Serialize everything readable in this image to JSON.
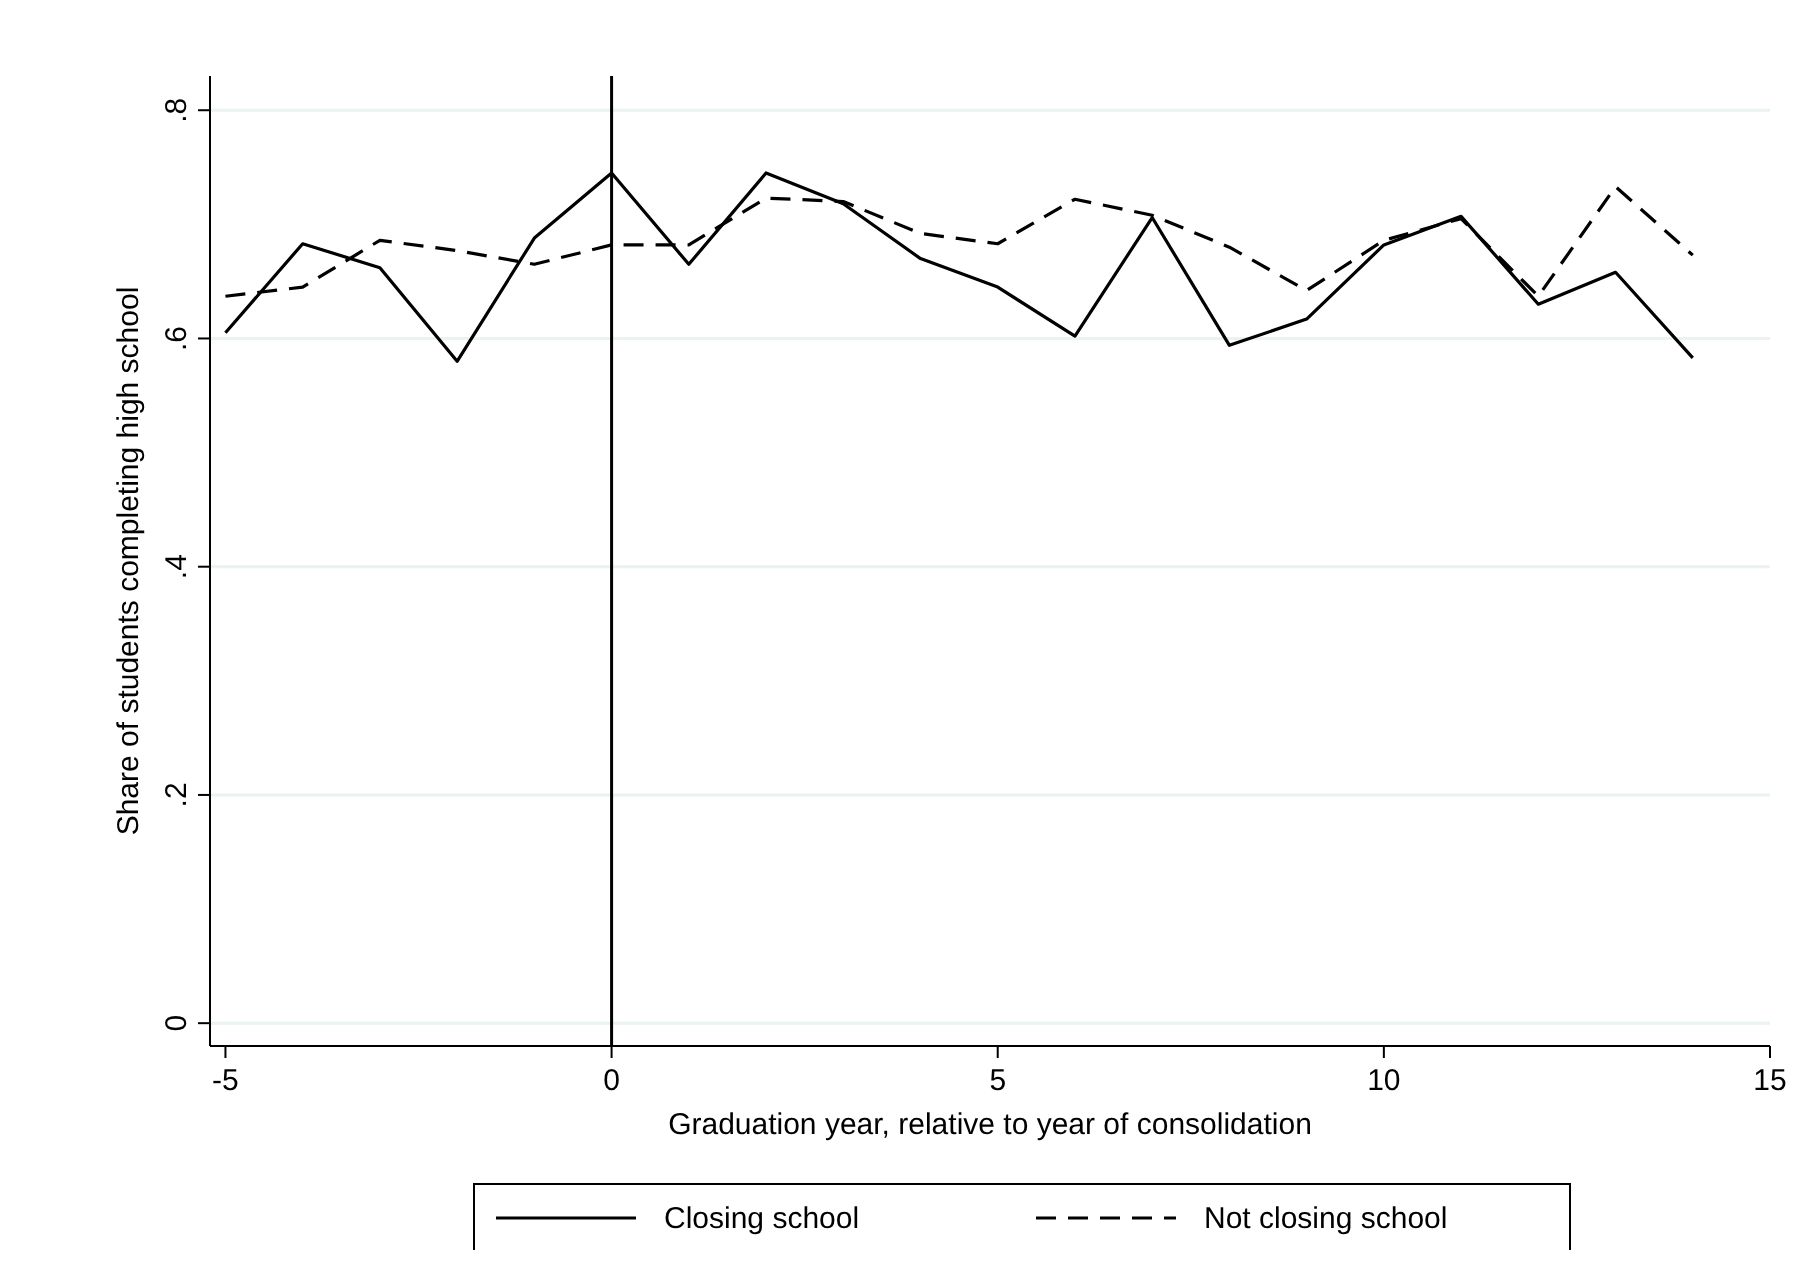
{
  "chart_data": {
    "type": "line",
    "xlabel": "Graduation year, relative to year of consolidation",
    "ylabel": "Share of students completing high school",
    "x": [
      -5,
      -4,
      -3,
      -2,
      -1,
      0,
      1,
      2,
      3,
      4,
      5,
      6,
      7,
      8,
      9,
      10,
      11,
      12,
      13,
      14
    ],
    "series": [
      {
        "name": "Closing school",
        "color": "#000000",
        "line_style": "solid",
        "values": [
          0.605,
          0.683,
          0.662,
          0.58,
          0.688,
          0.745,
          0.665,
          0.745,
          0.718,
          0.67,
          0.645,
          0.602,
          0.706,
          0.594,
          0.617,
          0.682,
          0.707,
          0.63,
          0.658,
          0.583
        ]
      },
      {
        "name": "Not closing school",
        "color": "#000000",
        "line_style": "dashed",
        "values": [
          0.637,
          0.645,
          0.686,
          0.677,
          0.665,
          0.682,
          0.682,
          0.723,
          0.72,
          0.692,
          0.683,
          0.722,
          0.708,
          0.68,
          0.642,
          0.686,
          0.705,
          0.637,
          0.733,
          0.673
        ]
      }
    ],
    "xlim": [
      -5.2,
      15
    ],
    "xticks": [
      -5,
      0,
      5,
      10,
      15
    ],
    "ylim": [
      -0.02,
      0.83
    ],
    "yticks": [
      {
        "value": 0,
        "label": "0"
      },
      {
        "value": 0.2,
        "label": ".2"
      },
      {
        "value": 0.4,
        "label": ".4"
      },
      {
        "value": 0.6,
        "label": ".6"
      },
      {
        "value": 0.8,
        "label": ".8"
      }
    ],
    "grid": "y",
    "legend": "bottom",
    "ref_lines": [
      {
        "axis": "x",
        "value": 0,
        "color": "#000000"
      }
    ]
  }
}
